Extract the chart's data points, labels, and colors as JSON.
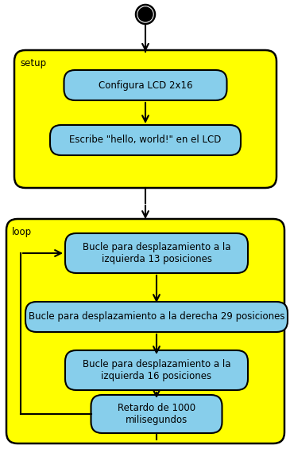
{
  "bg_color": "#ffffff",
  "yellow": "#ffff00",
  "blue_box": "#87CEEB",
  "border_color": "#000000",
  "setup_label": "setup",
  "loop_label": "loop",
  "box1_text": "Configura LCD 2x16",
  "box2_text": "Escribe \"hello, world!\" en el LCD",
  "box3_text": "Bucle para desplazamiento a la\nizquierda 13 posiciones",
  "box4_text": "Bucle para desplazamiento a la derecha 29 posiciones",
  "box5_text": "Bucle para desplazamiento a la\nizquierda 16 posiciones",
  "box6_text": "Retardo de 1000\nmilisegundos",
  "font_size": 8.5,
  "label_font_size": 8.5,
  "fig_w": 3.65,
  "fig_h": 5.74,
  "dpi": 100
}
